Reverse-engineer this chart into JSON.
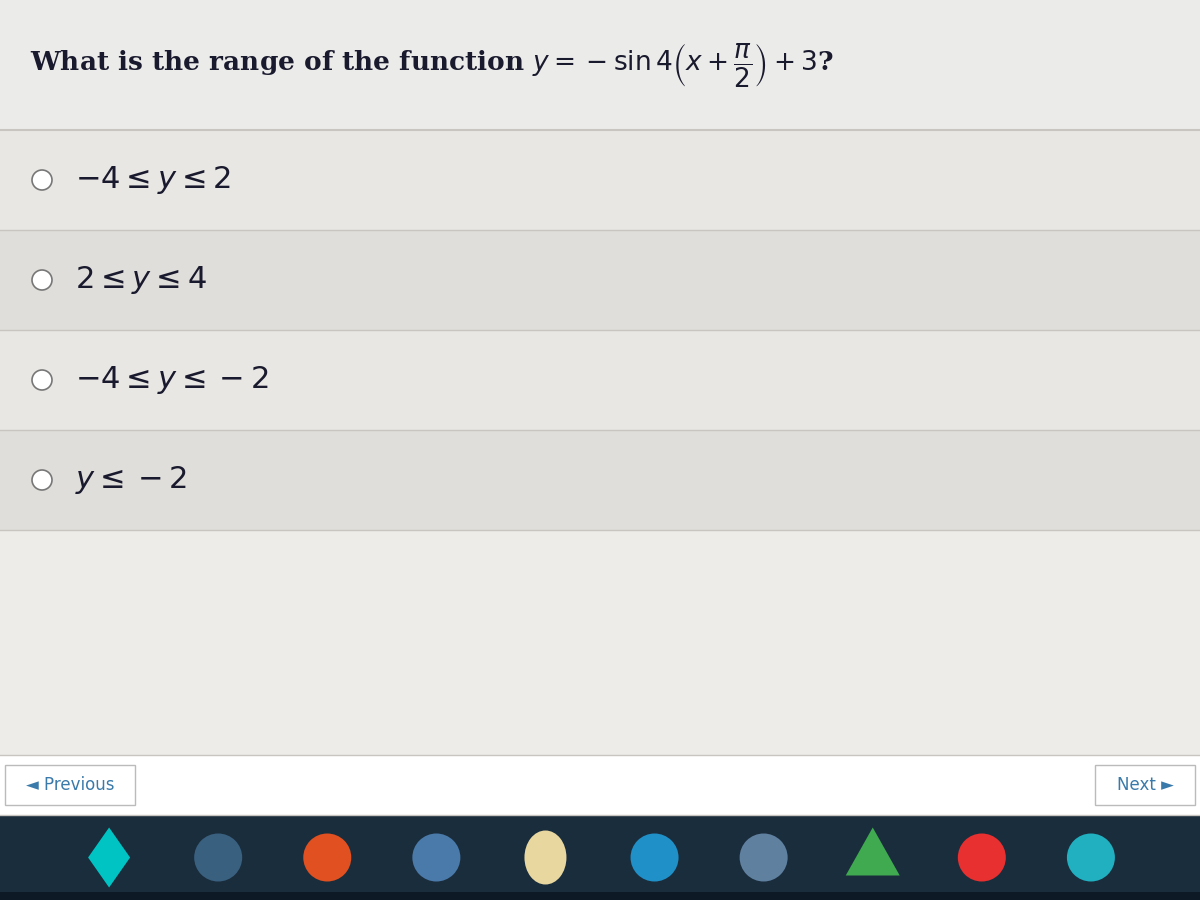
{
  "question_text": "What is the range of the function ",
  "question_math": "$y = -\\sin 4\\left(x + \\dfrac{\\pi}{2}\\right) + 3$?",
  "options_plain": [
    "-4 ≤ y ≤ 2",
    "2 ≤ y ≤ 4",
    "-4 ≤ y ≤ -2",
    "y ≤ -2"
  ],
  "options_math": [
    "$-4 \\leq y \\leq 2$",
    "$2 \\leq y \\leq 4$",
    "$-4 \\leq y \\leq -2$",
    "$y \\leq -2$"
  ],
  "bg_color": "#e8e7e4",
  "content_bg": "#eeece9",
  "option_bg_light": "#e9e7e4",
  "option_bg_dark": "#e0deda",
  "line_color": "#c8c5c0",
  "text_color": "#1a1a2e",
  "nav_bg": "#1e3548",
  "taskbar_bg": "#1a2d3d",
  "button_bg": "#ffffff",
  "button_border": "#cccccc",
  "nav_text": "#3a7aaa",
  "question_fontsize": 19,
  "option_fontsize": 22,
  "nav_fontsize": 12
}
